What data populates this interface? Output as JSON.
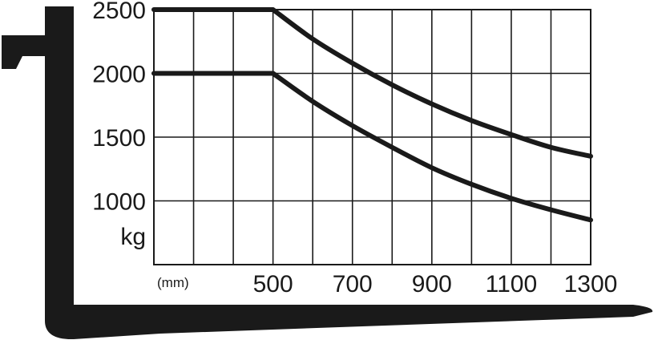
{
  "chart_data": {
    "type": "line",
    "y_unit": "kg",
    "x_unit": "(mm)",
    "x_tick_labels": [
      "500",
      "700",
      "900",
      "1100",
      "1300"
    ],
    "y_tick_labels": [
      "2500",
      "2000",
      "1500",
      "1000"
    ],
    "xlim": [
      200,
      1300
    ],
    "ylim": [
      500,
      2500
    ],
    "grid": true,
    "series": [
      {
        "x": [
          200,
          500,
          600,
          700,
          800,
          900,
          1000,
          1100,
          1200,
          1300
        ],
        "y": [
          2500,
          2500,
          2270,
          2080,
          1910,
          1760,
          1630,
          1520,
          1420,
          1350
        ]
      },
      {
        "x": [
          200,
          500,
          600,
          700,
          800,
          900,
          1000,
          1100,
          1200,
          1300
        ],
        "y": [
          2000,
          2000,
          1780,
          1590,
          1420,
          1260,
          1130,
          1020,
          930,
          850
        ]
      }
    ],
    "colors": {
      "line": "#1a1a1a",
      "grid": "#1a1a1a",
      "fork": "#1a1a1a"
    }
  }
}
